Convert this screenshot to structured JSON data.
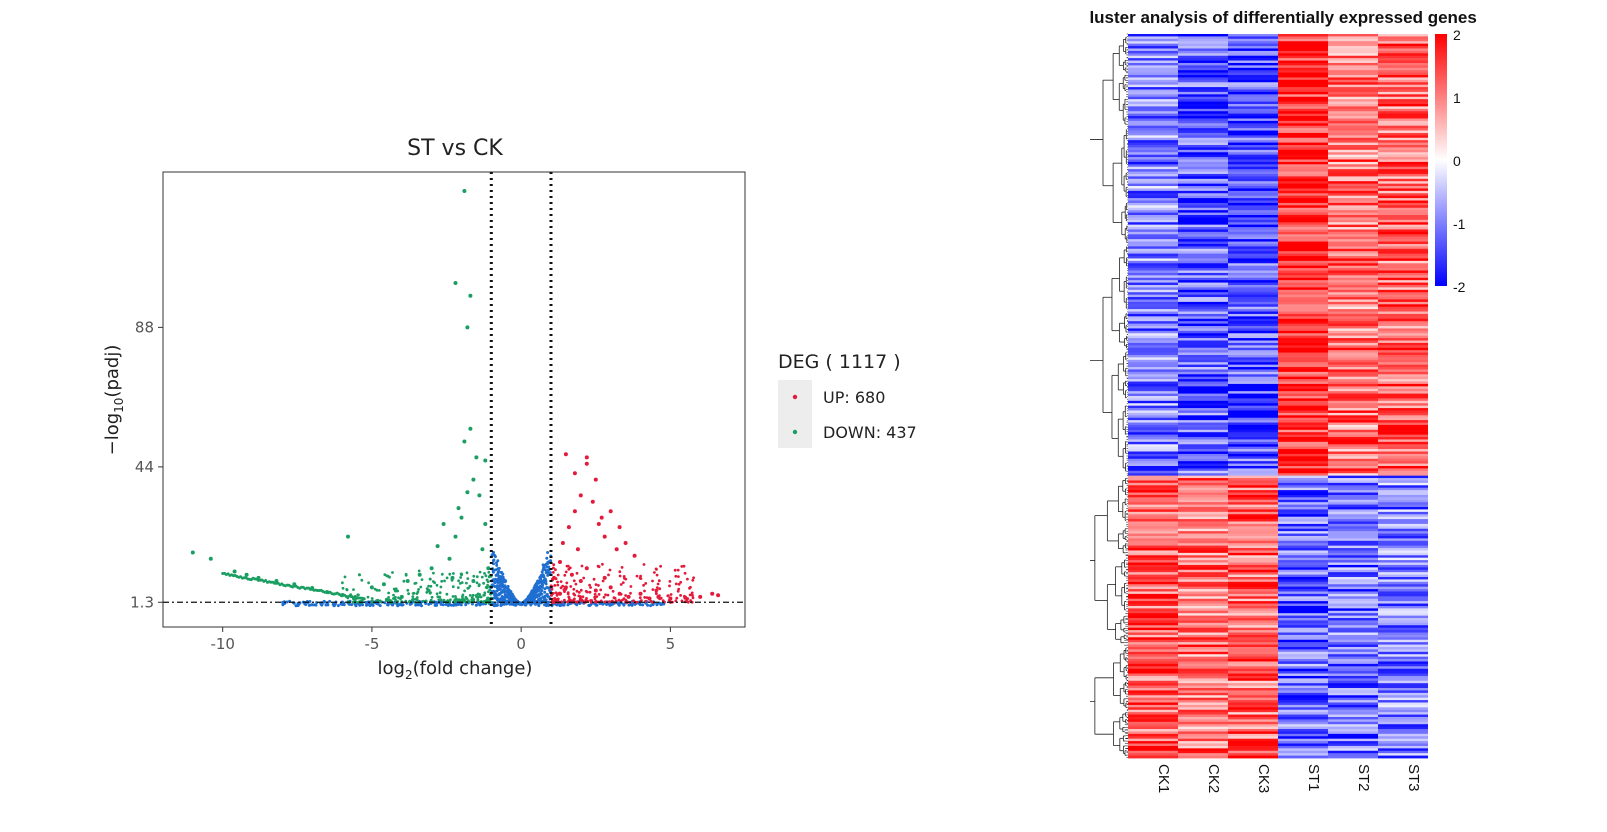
{
  "chart_data": [
    {
      "type": "scatter",
      "title": "ST vs CK",
      "xlabel": {
        "base": "log",
        "sub": "2",
        "rest": "(fold change)"
      },
      "ylabel": {
        "base": "−log",
        "sub": "10",
        "rest": "(padj)"
      },
      "xlim": [
        -12,
        7.5
      ],
      "ylim": [
        -6.5,
        137
      ],
      "xticks": [
        -10,
        -5,
        0,
        5
      ],
      "xtick_labels": [
        "-10",
        "-5",
        "0",
        "5"
      ],
      "yticks": [
        1.3,
        44,
        88
      ],
      "ytick_labels": [
        "1.3",
        "44",
        "88"
      ],
      "thresholds": {
        "x": [
          -1,
          1
        ],
        "y": 1.3
      },
      "grid": false,
      "legend": {
        "title": "DEG ( 1117 )",
        "position": "right",
        "items": [
          {
            "label": "UP: 680",
            "color": "#e41a3b"
          },
          {
            "label": "DOWN: 437",
            "color": "#1b9e62"
          }
        ]
      },
      "colors": {
        "up": "#e41a3b",
        "down": "#1b9e62",
        "nosig": "#1f6fd1"
      },
      "series": [
        {
          "name": "UP: 680",
          "group": "up",
          "points": [
            [
              1.2,
              2
            ],
            [
              1.3,
              4
            ],
            [
              1.5,
              6
            ],
            [
              1.7,
              10
            ],
            [
              2,
              8
            ],
            [
              2.2,
              12
            ],
            [
              2.5,
              5
            ],
            [
              2.8,
              9
            ],
            [
              3,
              6
            ],
            [
              3.3,
              4
            ],
            [
              3.6,
              3
            ],
            [
              4,
              4
            ],
            [
              4.3,
              2.5
            ],
            [
              4.6,
              3
            ],
            [
              5,
              2.5
            ],
            [
              5.5,
              2.7
            ],
            [
              6,
              3
            ],
            [
              6.4,
              4
            ],
            [
              6.6,
              3.5
            ],
            [
              1.4,
              20
            ],
            [
              1.6,
              25
            ],
            [
              1.8,
              30
            ],
            [
              2,
              35
            ],
            [
              2.2,
              45
            ],
            [
              2.5,
              40
            ],
            [
              1.5,
              48
            ],
            [
              2.2,
              47
            ],
            [
              1.8,
              42
            ],
            [
              2.4,
              33
            ],
            [
              2.7,
              28
            ],
            [
              3,
              30
            ],
            [
              3.3,
              25
            ],
            [
              3.5,
              20
            ],
            [
              3.8,
              16
            ],
            [
              3.2,
              18
            ],
            [
              2.8,
              22
            ],
            [
              2.6,
              26
            ],
            [
              1.9,
              18
            ],
            [
              1.3,
              14
            ],
            [
              1.1,
              9
            ]
          ]
        },
        {
          "name": "DOWN: 437",
          "group": "down",
          "points": [
            [
              -11,
              17
            ],
            [
              -10.4,
              15
            ],
            [
              -9.6,
              11
            ],
            [
              -9.2,
              10
            ],
            [
              -8.8,
              9
            ],
            [
              -8.2,
              8
            ],
            [
              -7.6,
              7
            ],
            [
              -7,
              5.8
            ],
            [
              -6.5,
              4.5
            ],
            [
              -6,
              3.5
            ],
            [
              -5.6,
              2.5
            ],
            [
              -5.8,
              22
            ],
            [
              -5,
              6
            ],
            [
              -4.6,
              7
            ],
            [
              -4.2,
              5
            ],
            [
              -3.8,
              8
            ],
            [
              -3.4,
              10
            ],
            [
              -3,
              12
            ],
            [
              -2.8,
              19
            ],
            [
              -2.6,
              26
            ],
            [
              -2.4,
              15
            ],
            [
              -2.2,
              22
            ],
            [
              -2,
              28
            ],
            [
              -1.8,
              36
            ],
            [
              -1.6,
              40
            ],
            [
              -1.4,
              35
            ],
            [
              -1.2,
              46
            ],
            [
              -1.5,
              47
            ],
            [
              -1.7,
              56
            ],
            [
              -1.9,
              52
            ],
            [
              -2.1,
              31
            ],
            [
              -1.3,
              18
            ],
            [
              -1.1,
              12
            ],
            [
              -1.2,
              26
            ],
            [
              -1.6,
              8
            ],
            [
              -2.3,
              9
            ],
            [
              -3.1,
              5
            ],
            [
              -4,
              3
            ],
            [
              -4.5,
              2
            ],
            [
              -2.2,
              102
            ],
            [
              -1.7,
              98
            ],
            [
              -1.8,
              88
            ],
            [
              -1.9,
              131
            ]
          ]
        }
      ]
    },
    {
      "type": "heatmap",
      "title": "Cluster analysis of differentially expressed genes",
      "columns": [
        "CK1",
        "CK2",
        "CK3",
        "ST1",
        "ST2",
        "ST3"
      ],
      "scale": {
        "min": -2,
        "max": 2,
        "ticks": [
          2,
          1,
          0,
          -1,
          -2
        ],
        "tick_labels": [
          "2",
          "1",
          "0",
          "-1",
          "-2"
        ]
      },
      "colors": {
        "low": "#0000ff",
        "mid": "#ffffff",
        "high": "#ff0000"
      },
      "clusters": [
        {
          "rows_fraction": 0.61,
          "values": [
            -1,
            -1.3,
            -1.4,
            1.7,
            1.1,
            1.2
          ]
        },
        {
          "rows_fraction": 0.39,
          "values": [
            1.3,
            1.1,
            1.2,
            -1.2,
            -1.1,
            -1.0
          ]
        }
      ]
    }
  ]
}
